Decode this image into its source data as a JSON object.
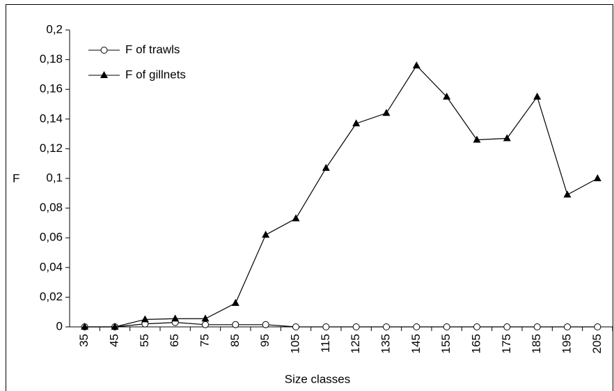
{
  "chart_data": {
    "type": "line",
    "x_label": "Size classes",
    "y_label": "F",
    "categories": [
      "35",
      "45",
      "55",
      "65",
      "75",
      "85",
      "95",
      "105",
      "115",
      "125",
      "135",
      "145",
      "155",
      "165",
      "175",
      "185",
      "195",
      "205"
    ],
    "series": [
      {
        "name": "F of trawls",
        "color": "#000000",
        "marker": "circle",
        "values": [
          0,
          0,
          0.002,
          0.003,
          0.0015,
          0.0015,
          0.0015,
          0,
          0,
          0,
          0,
          0,
          0,
          0,
          0,
          0,
          0,
          0
        ]
      },
      {
        "name": "F of gillnets",
        "color": "#000000",
        "marker": "triangle",
        "values": [
          0,
          0,
          0.005,
          0.0055,
          0.0055,
          0.016,
          0.062,
          0.073,
          0.107,
          0.137,
          0.144,
          0.176,
          0.155,
          0.126,
          0.127,
          0.155,
          0.089,
          0.1
        ]
      }
    ],
    "ylim": [
      0,
      0.2
    ],
    "yticks": [
      0,
      {
        "value": 0.02,
        "label": "0,02"
      },
      {
        "value": 0.04,
        "label": "0,04"
      },
      {
        "value": 0.06,
        "label": "0,06"
      },
      {
        "value": 0.08,
        "label": "0,08"
      },
      {
        "value": 0.1,
        "label": "0,1"
      },
      {
        "value": 0.12,
        "label": "0,12"
      },
      {
        "value": 0.14,
        "label": "0,14"
      },
      {
        "value": 0.16,
        "label": "0,16"
      },
      {
        "value": 0.18,
        "label": "0,18"
      },
      {
        "value": 0.2,
        "label": "0,2"
      }
    ],
    "legend": "top-left",
    "grid": false
  }
}
